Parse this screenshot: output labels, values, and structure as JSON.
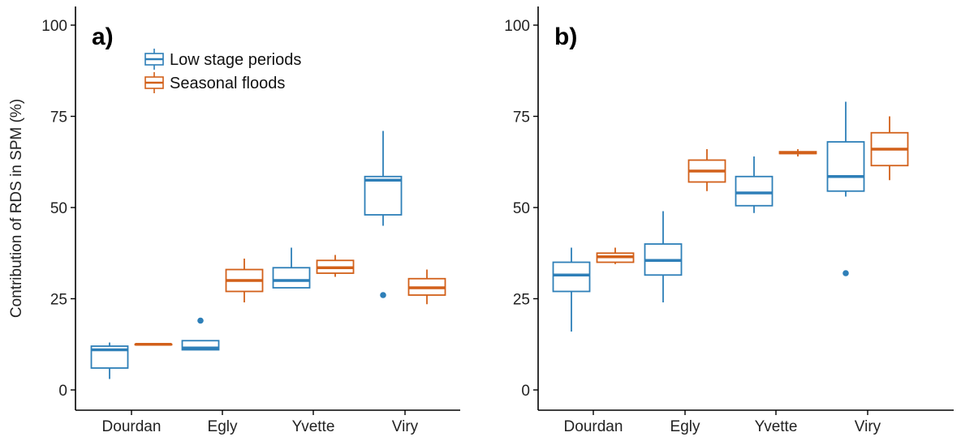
{
  "chart_data": {
    "type": "boxplot",
    "ylabel": "Contribution of RDS in SPM (%)",
    "ylim": [
      0,
      105
    ],
    "yticks": [
      0,
      25,
      50,
      75,
      100
    ],
    "categories": [
      "Dourdan",
      "Egly",
      "Yvette",
      "Viry"
    ],
    "legend": {
      "placement": "top-left",
      "entries": [
        "Low stage periods",
        "Seasonal floods"
      ]
    },
    "colors": {
      "Low stage periods": "#2e7fb8",
      "Seasonal floods": "#d2601a"
    },
    "panels": [
      {
        "label": "a)",
        "series": [
          {
            "name": "Low stage periods",
            "boxes": [
              {
                "category": "Dourdan",
                "whisker_low": 3,
                "q1": 6,
                "median": 11,
                "q3": 12,
                "whisker_high": 13,
                "outliers": []
              },
              {
                "category": "Egly",
                "whisker_low": 11,
                "q1": 11,
                "median": 11.5,
                "q3": 13.5,
                "whisker_high": 13.5,
                "outliers": [
                  19
                ]
              },
              {
                "category": "Yvette",
                "whisker_low": 28,
                "q1": 28,
                "median": 30,
                "q3": 33.5,
                "whisker_high": 39,
                "outliers": []
              },
              {
                "category": "Viry",
                "whisker_low": 45,
                "q1": 48,
                "median": 57.5,
                "q3": 58.5,
                "whisker_high": 71,
                "outliers": [
                  26
                ]
              }
            ]
          },
          {
            "name": "Seasonal floods",
            "boxes": [
              {
                "category": "Dourdan",
                "whisker_low": 12.5,
                "q1": 12.5,
                "median": 12.5,
                "q3": 12.5,
                "whisker_high": 12.5,
                "outliers": []
              },
              {
                "category": "Egly",
                "whisker_low": 24,
                "q1": 27,
                "median": 30,
                "q3": 33,
                "whisker_high": 36,
                "outliers": []
              },
              {
                "category": "Yvette",
                "whisker_low": 31,
                "q1": 32,
                "median": 33.5,
                "q3": 35.5,
                "whisker_high": 37,
                "outliers": []
              },
              {
                "category": "Viry",
                "whisker_low": 23.5,
                "q1": 26,
                "median": 28,
                "q3": 30.5,
                "whisker_high": 33,
                "outliers": []
              }
            ]
          }
        ]
      },
      {
        "label": "b)",
        "series": [
          {
            "name": "Low stage periods",
            "boxes": [
              {
                "category": "Dourdan",
                "whisker_low": 16,
                "q1": 27,
                "median": 31.5,
                "q3": 35,
                "whisker_high": 39,
                "outliers": []
              },
              {
                "category": "Egly",
                "whisker_low": 24,
                "q1": 31.5,
                "median": 35.5,
                "q3": 40,
                "whisker_high": 49,
                "outliers": []
              },
              {
                "category": "Yvette",
                "whisker_low": 48.5,
                "q1": 50.5,
                "median": 54,
                "q3": 58.5,
                "whisker_high": 64,
                "outliers": []
              },
              {
                "category": "Viry",
                "whisker_low": 53,
                "q1": 54.5,
                "median": 58.5,
                "q3": 68,
                "whisker_high": 79,
                "outliers": [
                  32
                ]
              }
            ]
          },
          {
            "name": "Seasonal floods",
            "boxes": [
              {
                "category": "Dourdan",
                "whisker_low": 34.5,
                "q1": 35,
                "median": 36.5,
                "q3": 37.5,
                "whisker_high": 39,
                "outliers": []
              },
              {
                "category": "Egly",
                "whisker_low": 54.5,
                "q1": 57,
                "median": 60,
                "q3": 63,
                "whisker_high": 66,
                "outliers": []
              },
              {
                "category": "Yvette",
                "whisker_low": 64,
                "q1": 64.8,
                "median": 65,
                "q3": 65.3,
                "whisker_high": 66,
                "outliers": []
              },
              {
                "category": "Viry",
                "whisker_low": 57.5,
                "q1": 61.5,
                "median": 66,
                "q3": 70.5,
                "whisker_high": 75,
                "outliers": []
              }
            ]
          }
        ]
      }
    ]
  }
}
